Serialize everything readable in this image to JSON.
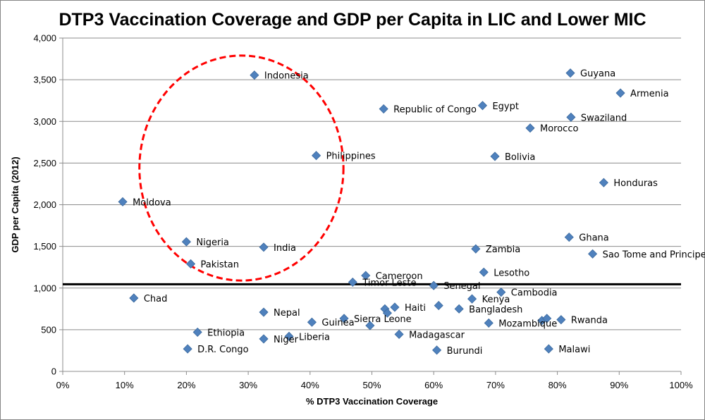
{
  "chart_data": {
    "type": "scatter",
    "title": "DTP3 Vaccination Coverage and GDP per Capita in LIC and Lower MIC",
    "xlabel": "% DTP3 Vaccination Coverage",
    "ylabel": "GDP per Capita (2012)",
    "xlim": [
      0,
      100
    ],
    "ylim": [
      0,
      4000
    ],
    "x_ticks": [
      "0%",
      "10%",
      "20%",
      "30%",
      "40%",
      "50%",
      "60%",
      "70%",
      "80%",
      "90%",
      "100%"
    ],
    "y_ticks": [
      "0",
      "500",
      "1,000",
      "1,500",
      "2,000",
      "2,500",
      "3,000",
      "3,500",
      "4,000"
    ],
    "grid": "horizontal",
    "marker_color": "#4F81BD",
    "threshold_line": {
      "y": 1045,
      "color": "#000000"
    },
    "highlight_ellipse": {
      "center_x": 28.9,
      "center_y": 2440,
      "radius_x": 16.5,
      "radius_y": 1350,
      "color": "#FF0000",
      "style": "dashed"
    },
    "points": [
      {
        "label": "Indonesia",
        "x": 31,
        "y": 3555
      },
      {
        "label": "Philippines",
        "x": 41,
        "y": 2590
      },
      {
        "label": "Moldova",
        "x": 9.7,
        "y": 2035
      },
      {
        "label": "Nigeria",
        "x": 20,
        "y": 1555
      },
      {
        "label": "India",
        "x": 32.5,
        "y": 1490
      },
      {
        "label": "Pakistan",
        "x": 20.7,
        "y": 1290
      },
      {
        "label": "Chad",
        "x": 11.5,
        "y": 880
      },
      {
        "label": "Nepal",
        "x": 32.5,
        "y": 710
      },
      {
        "label": "Ethiopia",
        "x": 21.8,
        "y": 470
      },
      {
        "label": "Niger",
        "x": 32.5,
        "y": 390
      },
      {
        "label": "Liberia",
        "x": 36.6,
        "y": 420
      },
      {
        "label": "D.R. Congo",
        "x": 20.2,
        "y": 270
      },
      {
        "label": "Guinea",
        "x": 40.3,
        "y": 590
      },
      {
        "label": "Sierra Leone",
        "x": 45.5,
        "y": 635
      },
      {
        "label": "Haiti",
        "x": 53.7,
        "y": 770
      },
      {
        "label": "Timor Leste",
        "x": 46.9,
        "y": 1070
      },
      {
        "label": "Cameroon",
        "x": 49,
        "y": 1150
      },
      {
        "label": "Madagascar",
        "x": 54.4,
        "y": 445
      },
      {
        "label": "Senegal",
        "x": 60,
        "y": 1030
      },
      {
        "label": "Republic of Congo",
        "x": 51.9,
        "y": 3150
      },
      {
        "label": "Egypt",
        "x": 67.9,
        "y": 3190
      },
      {
        "label": "Bolivia",
        "x": 69.9,
        "y": 2580
      },
      {
        "label": "Zambia",
        "x": 66.8,
        "y": 1470
      },
      {
        "label": "Lesotho",
        "x": 68.1,
        "y": 1190
      },
      {
        "label": "Kenya",
        "x": 66.2,
        "y": 870
      },
      {
        "label": "Cambodia",
        "x": 70.9,
        "y": 950
      },
      {
        "label": "Bangladesh",
        "x": 64.1,
        "y": 750
      },
      {
        "label": "Mozambique",
        "x": 68.9,
        "y": 580
      },
      {
        "label": "Burundi",
        "x": 60.5,
        "y": 255
      },
      {
        "label": "Guyana",
        "x": 82.1,
        "y": 3580
      },
      {
        "label": "Armenia",
        "x": 90.2,
        "y": 3340
      },
      {
        "label": "Swaziland",
        "x": 82.2,
        "y": 3050
      },
      {
        "label": "Morocco",
        "x": 75.6,
        "y": 2920
      },
      {
        "label": "Honduras",
        "x": 87.5,
        "y": 2265
      },
      {
        "label": "Ghana",
        "x": 81.9,
        "y": 1610
      },
      {
        "label": "Sao Tome and Principe",
        "x": 85.7,
        "y": 1410
      },
      {
        "label": "Rwanda",
        "x": 80.6,
        "y": 620
      },
      {
        "label": "Malawi",
        "x": 78.6,
        "y": 270
      }
    ],
    "unlabeled_points": [
      {
        "x": 52.1,
        "y": 750
      },
      {
        "x": 52.5,
        "y": 700
      },
      {
        "x": 49.7,
        "y": 550
      },
      {
        "x": 60.8,
        "y": 790
      },
      {
        "x": 77.5,
        "y": 610
      },
      {
        "x": 78.3,
        "y": 635
      }
    ]
  }
}
